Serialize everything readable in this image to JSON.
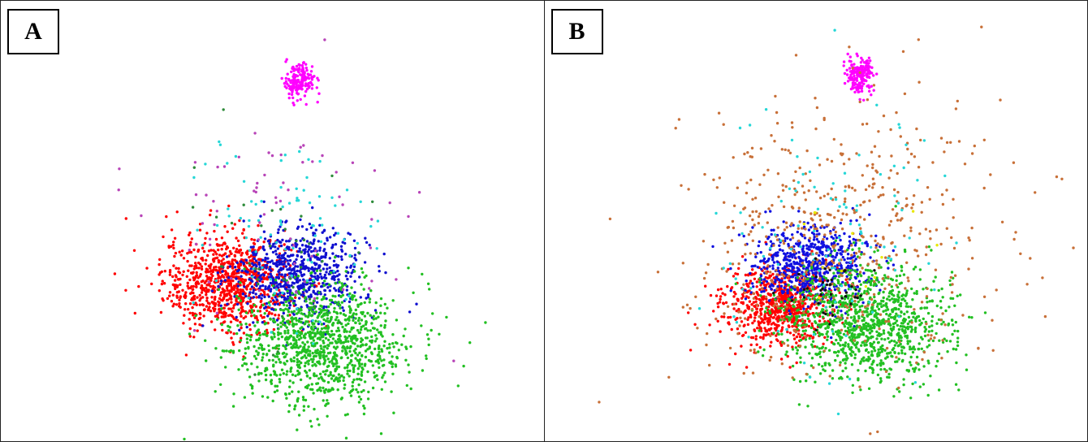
{
  "figure": {
    "panels": [
      {
        "label": "A"
      },
      {
        "label": "B"
      }
    ]
  },
  "chart_data": [
    {
      "type": "scatter",
      "panel": "A",
      "title": "",
      "xlabel": "",
      "ylabel": "",
      "axes_visible": false,
      "grid": false,
      "xlim": [
        0,
        100
      ],
      "ylim": [
        0,
        100
      ],
      "clusters": [
        {
          "color": "#ff0000",
          "center": [
            42,
            36
          ],
          "spread": [
            6,
            5.5
          ],
          "n": 900
        },
        {
          "color": "#1010d0",
          "center": [
            55,
            38
          ],
          "spread": [
            6,
            5
          ],
          "n": 700
        },
        {
          "color": "#22c022",
          "center": [
            59,
            22
          ],
          "spread": [
            8,
            7
          ],
          "n": 1100
        },
        {
          "color": "#ff00ff",
          "center": [
            55,
            82
          ],
          "spread": [
            1.4,
            1.6
          ],
          "n": 180
        },
        {
          "color": "#26d7d7",
          "center": [
            52,
            50
          ],
          "spread": [
            9,
            10
          ],
          "n": 90
        },
        {
          "color": "#b844b8",
          "center": [
            50,
            50
          ],
          "spread": [
            12,
            14
          ],
          "n": 70
        },
        {
          "color": "#2e8b3a",
          "center": [
            52,
            45
          ],
          "spread": [
            8,
            12
          ],
          "n": 40
        }
      ]
    },
    {
      "type": "scatter",
      "panel": "B",
      "title": "",
      "xlabel": "",
      "ylabel": "",
      "axes_visible": false,
      "grid": false,
      "xlim": [
        0,
        100
      ],
      "ylim": [
        0,
        100
      ],
      "clusters": [
        {
          "color": "#ff0000",
          "center": [
            43,
            31
          ],
          "spread": [
            5,
            4.5
          ],
          "n": 750
        },
        {
          "color": "#1010e0",
          "center": [
            49,
            40
          ],
          "spread": [
            5.5,
            4.5
          ],
          "n": 650
        },
        {
          "color": "#22c022",
          "center": [
            59,
            27
          ],
          "spread": [
            7.5,
            6.5
          ],
          "n": 1100
        },
        {
          "color": "#ff00ff",
          "center": [
            58,
            83
          ],
          "spread": [
            1.3,
            2
          ],
          "n": 180
        },
        {
          "color": "#c87038",
          "center": [
            55,
            46
          ],
          "spread": [
            14,
            15
          ],
          "n": 550
        },
        {
          "color": "#26d7d7",
          "center": [
            52,
            45
          ],
          "spread": [
            10,
            14
          ],
          "n": 110
        },
        {
          "color": "#111111",
          "center": [
            52,
            35
          ],
          "spread": [
            4,
            4
          ],
          "n": 40
        },
        {
          "color": "#e8e800",
          "center": [
            55,
            42
          ],
          "spread": [
            6,
            8
          ],
          "n": 12
        }
      ]
    }
  ]
}
